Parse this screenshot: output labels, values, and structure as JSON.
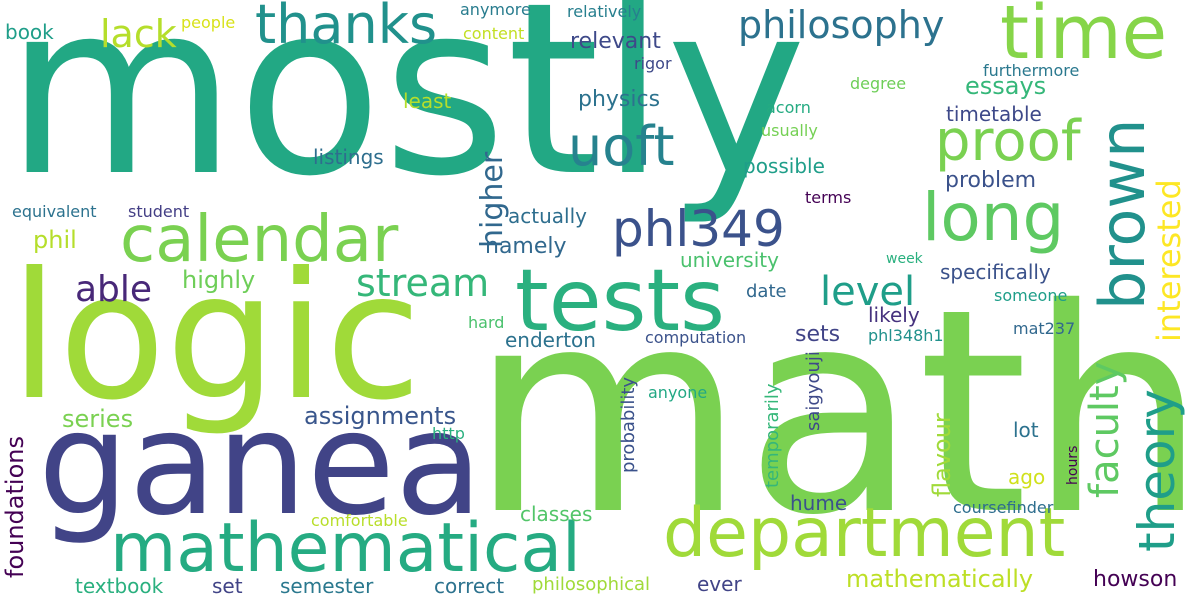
{
  "cloud": {
    "words": [
      {
        "text": "mostly",
        "color": "#22a884"
      },
      {
        "text": "math",
        "color": "#7ad151"
      },
      {
        "text": "logic",
        "color": "#a0da39"
      },
      {
        "text": "ganea",
        "color": "#414487"
      },
      {
        "text": "calendar",
        "color": "#7ad151"
      },
      {
        "text": "tests",
        "color": "#2ab07f"
      },
      {
        "text": "mathematical",
        "color": "#25ab82"
      },
      {
        "text": "department",
        "color": "#a0da39"
      },
      {
        "text": "brown",
        "color": "#21918c"
      },
      {
        "text": "long",
        "color": "#5ec962"
      },
      {
        "text": "time",
        "color": "#86d549"
      },
      {
        "text": "thanks",
        "color": "#21918c"
      },
      {
        "text": "proof",
        "color": "#7ad151"
      },
      {
        "text": "uoft",
        "color": "#26828e"
      },
      {
        "text": "phl349",
        "color": "#3b528b"
      },
      {
        "text": "philosophy",
        "color": "#2c728e"
      },
      {
        "text": "lack",
        "color": "#b5de2b"
      },
      {
        "text": "able",
        "color": "#482878"
      },
      {
        "text": "stream",
        "color": "#35b779"
      },
      {
        "text": "higher",
        "color": "#31688e"
      },
      {
        "text": "theory",
        "color": "#1f9e89"
      },
      {
        "text": "faculty",
        "color": "#5ec962"
      },
      {
        "text": "interested",
        "color": "#fde725"
      },
      {
        "text": "level",
        "color": "#1f9e89"
      },
      {
        "text": "mathematically",
        "color": "#bddf26"
      },
      {
        "text": "assignments",
        "color": "#39568c"
      },
      {
        "text": "foundations",
        "color": "#440154"
      },
      {
        "text": "series",
        "color": "#7ad151"
      },
      {
        "text": "relevant",
        "color": "#3e4989"
      },
      {
        "text": "physics",
        "color": "#2c728e"
      },
      {
        "text": "essays",
        "color": "#35b779"
      },
      {
        "text": "timetable",
        "color": "#3e4989"
      },
      {
        "text": "problem",
        "color": "#3b528b"
      },
      {
        "text": "specifically",
        "color": "#3b528b"
      },
      {
        "text": "highly",
        "color": "#6ece58"
      },
      {
        "text": "phil",
        "color": "#b5de2b"
      },
      {
        "text": "namely",
        "color": "#31688e"
      },
      {
        "text": "actually",
        "color": "#2e6e8e"
      },
      {
        "text": "university",
        "color": "#4ac16d"
      },
      {
        "text": "possible",
        "color": "#1f9e89"
      },
      {
        "text": "listings",
        "color": "#2e6e8e"
      },
      {
        "text": "least",
        "color": "#b5de2b"
      },
      {
        "text": "student",
        "color": "#433e85"
      },
      {
        "text": "equivalent",
        "color": "#2c728e"
      },
      {
        "text": "book",
        "color": "#1f9e89"
      },
      {
        "text": "people",
        "color": "#d8e219"
      },
      {
        "text": "anymore",
        "color": "#287c8e"
      },
      {
        "text": "content",
        "color": "#c2df23"
      },
      {
        "text": "relatively",
        "color": "#277f8e"
      },
      {
        "text": "rigor",
        "color": "#3e4989"
      },
      {
        "text": "degree",
        "color": "#6ece58"
      },
      {
        "text": "furthermore",
        "color": "#2a788e"
      },
      {
        "text": "acorn",
        "color": "#25ab82"
      },
      {
        "text": "usually",
        "color": "#75d054"
      },
      {
        "text": "terms",
        "color": "#440154"
      },
      {
        "text": "week",
        "color": "#2ab07f"
      },
      {
        "text": "date",
        "color": "#31688e"
      },
      {
        "text": "someone",
        "color": "#1f9e89"
      },
      {
        "text": "likely",
        "color": "#46327e"
      },
      {
        "text": "sets",
        "color": "#414487"
      },
      {
        "text": "hard",
        "color": "#4ac16d"
      },
      {
        "text": "computation",
        "color": "#3b528b"
      },
      {
        "text": "phl348h1",
        "color": "#21918c"
      },
      {
        "text": "mat237",
        "color": "#31688e"
      },
      {
        "text": "enderton",
        "color": "#2c728e"
      },
      {
        "text": "probability",
        "color": "#3b528b"
      },
      {
        "text": "saigyouji",
        "color": "#3e4989"
      },
      {
        "text": "temporarily",
        "color": "#35b779"
      },
      {
        "text": "flavour",
        "color": "#a0da39"
      },
      {
        "text": "lot",
        "color": "#2c728e"
      },
      {
        "text": "hours",
        "color": "#440154"
      },
      {
        "text": "anyone",
        "color": "#22a884"
      },
      {
        "text": "http",
        "color": "#2ab07f"
      },
      {
        "text": "ago",
        "color": "#d0e11c"
      },
      {
        "text": "hume",
        "color": "#3b528b"
      },
      {
        "text": "coursefinder",
        "color": "#2e6e8e"
      },
      {
        "text": "classes",
        "color": "#52c569"
      },
      {
        "text": "comfortable",
        "color": "#b8de29"
      },
      {
        "text": "textbook",
        "color": "#2ab07f"
      },
      {
        "text": "set",
        "color": "#414487"
      },
      {
        "text": "semester",
        "color": "#2a788e"
      },
      {
        "text": "correct",
        "color": "#2c728e"
      },
      {
        "text": "philosophical",
        "color": "#a0da39"
      },
      {
        "text": "ever",
        "color": "#414487"
      },
      {
        "text": "howson",
        "color": "#440154"
      }
    ]
  }
}
